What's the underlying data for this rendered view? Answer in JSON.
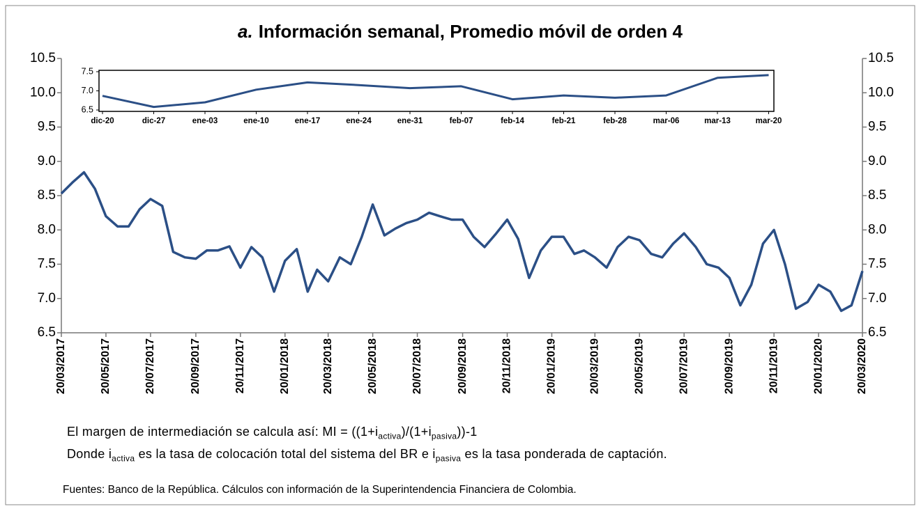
{
  "chart_data": [
    {
      "type": "line",
      "title_prefix": "a.",
      "title": "Información semanal, Promedio móvil de orden 4",
      "color": "#2b4f86",
      "x": [
        "20/03/2017",
        "05/04/2017",
        "20/04/2017",
        "05/05/2017",
        "20/05/2017",
        "05/06/2017",
        "20/06/2017",
        "05/07/2017",
        "20/07/2017",
        "05/08/2017",
        "20/08/2017",
        "05/09/2017",
        "20/09/2017",
        "05/10/2017",
        "20/10/2017",
        "05/11/2017",
        "20/11/2017",
        "05/12/2017",
        "20/12/2017",
        "05/01/2018",
        "20/01/2018",
        "05/02/2018",
        "20/02/2018",
        "05/03/2018",
        "20/03/2018",
        "05/04/2018",
        "20/04/2018",
        "05/05/2018",
        "20/05/2018",
        "05/06/2018",
        "20/06/2018",
        "05/07/2018",
        "20/07/2018",
        "05/08/2018",
        "20/08/2018",
        "05/09/2018",
        "20/09/2018",
        "05/10/2018",
        "20/10/2018",
        "05/11/2018",
        "20/11/2018",
        "05/12/2018",
        "20/12/2018",
        "05/01/2019",
        "20/01/2019",
        "05/02/2019",
        "20/02/2019",
        "05/03/2019",
        "20/03/2019",
        "05/04/2019",
        "20/04/2019",
        "05/05/2019",
        "20/05/2019",
        "05/06/2019",
        "20/06/2019",
        "05/07/2019",
        "20/07/2019",
        "05/08/2019",
        "20/08/2019",
        "05/09/2019",
        "20/09/2019",
        "05/10/2019",
        "20/10/2019",
        "05/11/2019",
        "20/11/2019",
        "05/12/2019",
        "20/12/2019",
        "05/01/2020",
        "20/01/2020",
        "05/02/2020",
        "20/02/2020",
        "05/03/2020",
        "20/03/2020"
      ],
      "values": [
        8.53,
        8.7,
        8.84,
        8.6,
        8.2,
        8.05,
        8.05,
        8.3,
        8.45,
        8.35,
        7.68,
        7.6,
        7.58,
        7.7,
        7.7,
        7.76,
        7.45,
        7.75,
        7.6,
        7.1,
        7.55,
        7.72,
        7.1,
        7.42,
        7.25,
        7.6,
        7.5,
        7.9,
        8.37,
        7.92,
        8.02,
        8.1,
        8.15,
        8.25,
        8.2,
        8.15,
        8.15,
        7.9,
        7.75,
        7.95,
        8.15,
        7.87,
        7.3,
        7.7,
        7.9,
        7.9,
        7.65,
        7.7,
        7.6,
        7.45,
        7.75,
        7.9,
        7.85,
        7.65,
        7.6,
        7.8,
        7.95,
        7.75,
        7.5,
        7.45,
        7.3,
        6.9,
        7.2,
        7.8,
        8.0,
        7.5,
        6.85,
        6.95,
        7.2,
        7.1,
        6.82,
        6.9,
        7.4
      ],
      "xlim": [
        "20/03/2017",
        "20/03/2020"
      ],
      "xticks": [
        "20/03/2017",
        "20/05/2017",
        "20/07/2017",
        "20/09/2017",
        "20/11/2017",
        "20/01/2018",
        "20/03/2018",
        "20/05/2018",
        "20/07/2018",
        "20/09/2018",
        "20/11/2018",
        "20/01/2019",
        "20/03/2019",
        "20/05/2019",
        "20/07/2019",
        "20/09/2019",
        "20/11/2019",
        "20/01/2020",
        "20/03/2020"
      ],
      "ylim": [
        6.5,
        10.5
      ],
      "yticks": [
        6.5,
        {
          "value": 7,
          "label": "7.0"
        },
        7.5,
        {
          "value": 8,
          "label": "8.0"
        },
        8.5,
        {
          "value": 9,
          "label": "9.0"
        },
        9.5,
        {
          "value": 10,
          "label": "10.0"
        },
        10.5
      ]
    },
    {
      "type": "line",
      "color": "#2b4f86",
      "categories": [
        "dic-20",
        "dic-27",
        "ene-03",
        "ene-10",
        "ene-17",
        "ene-24",
        "ene-31",
        "feb-07",
        "feb-14",
        "feb-21",
        "feb-28",
        "mar-06",
        "mar-13",
        "mar-20"
      ],
      "values": [
        6.87,
        6.58,
        6.7,
        7.03,
        7.22,
        7.15,
        7.07,
        7.12,
        6.78,
        6.88,
        6.82,
        6.88,
        7.34,
        7.41
      ],
      "ylim": [
        6.5,
        7.5
      ],
      "yticks": [
        6.5,
        {
          "value": 7,
          "label": "7.0"
        },
        7.5
      ]
    }
  ],
  "notes": [
    [
      "El margen de intermediación se calcula así: MI = ((1+i",
      "activa",
      ")/(1+i",
      "pasiva",
      "))-1"
    ],
    [
      "Donde i",
      "activa",
      " es la tasa de colocación total del sistema del BR e i",
      "pasiva",
      " es la tasa ponderada de captación."
    ]
  ],
  "source": "Fuentes: Banco de la República. Cálculos con información de la Superintendencia Financiera de Colombia."
}
